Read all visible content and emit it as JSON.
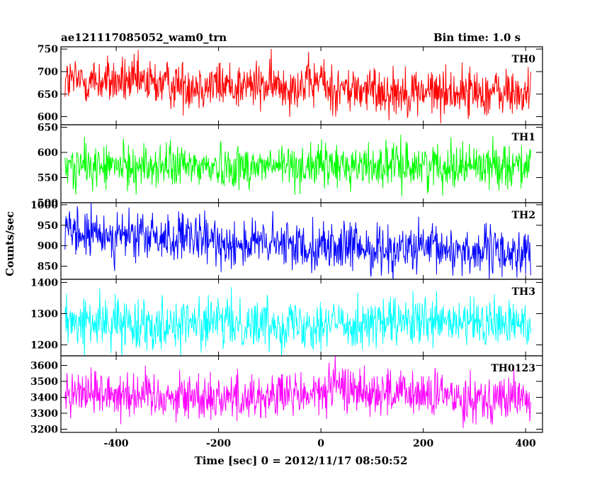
{
  "header": {
    "title": "ae121117085052_wam0_trn",
    "bin_time": "Bin time: 1.0 s"
  },
  "chart_data": {
    "type": "line",
    "title": "ae121117085052_wam0_trn",
    "subtitle": "Bin time: 1.0 s",
    "xlabel": "Time [sec] 0 = 2012/11/17 08:50:52",
    "ylabel": "Counts/sec",
    "xlim": [
      -508,
      433
    ],
    "x_ticks": [
      -400,
      -200,
      0,
      200,
      400
    ],
    "x_range_data": [
      -500,
      410
    ],
    "x_step": 1.0,
    "grid": false,
    "panels": [
      {
        "name": "TH0",
        "color": "#ff0000",
        "ylim": [
          582,
          755
        ],
        "y_ticks": [
          600,
          650,
          700,
          750
        ],
        "series_mean_profile": [
          [
            -500,
            680
          ],
          [
            -400,
            678
          ],
          [
            -300,
            672
          ],
          [
            -200,
            670
          ],
          [
            -100,
            668
          ],
          [
            -10,
            672
          ],
          [
            0,
            692
          ],
          [
            10,
            662
          ],
          [
            100,
            658
          ],
          [
            200,
            655
          ],
          [
            300,
            655
          ],
          [
            410,
            650
          ]
        ],
        "series_scatter": 27
      },
      {
        "name": "TH1",
        "color": "#00ff00",
        "ylim": [
          500,
          655
        ],
        "y_ticks": [
          500,
          550,
          600,
          650
        ],
        "series_mean_profile": [
          [
            -500,
            572
          ],
          [
            -250,
            572
          ],
          [
            0,
            573
          ],
          [
            250,
            575
          ],
          [
            410,
            576
          ]
        ],
        "series_scatter": 22
      },
      {
        "name": "TH2",
        "color": "#0000ff",
        "ylim": [
          818,
          1005
        ],
        "y_ticks": [
          850,
          900,
          950,
          1000
        ],
        "series_mean_profile": [
          [
            -500,
            928
          ],
          [
            -400,
            925
          ],
          [
            -300,
            918
          ],
          [
            -150,
            905
          ],
          [
            0,
            900
          ],
          [
            100,
            892
          ],
          [
            250,
            890
          ],
          [
            410,
            880
          ]
        ],
        "series_scatter": 30
      },
      {
        "name": "TH3",
        "color": "#00ffff",
        "ylim": [
          1165,
          1410
        ],
        "y_ticks": [
          1200,
          1300,
          1400
        ],
        "series_mean_profile": [
          [
            -500,
            1270
          ],
          [
            -250,
            1270
          ],
          [
            0,
            1270
          ],
          [
            250,
            1268
          ],
          [
            410,
            1268
          ]
        ],
        "series_scatter": 40
      },
      {
        "name": "TH0123",
        "color": "#ff00ff",
        "ylim": [
          3180,
          3660
        ],
        "y_ticks": [
          3200,
          3300,
          3400,
          3500,
          3600
        ],
        "series_mean_profile": [
          [
            -500,
            3440
          ],
          [
            -400,
            3430
          ],
          [
            -300,
            3410
          ],
          [
            -150,
            3400
          ],
          [
            0,
            3420
          ],
          [
            20,
            3470
          ],
          [
            150,
            3420
          ],
          [
            300,
            3400
          ],
          [
            410,
            3390
          ]
        ],
        "series_scatter": 75
      }
    ]
  }
}
